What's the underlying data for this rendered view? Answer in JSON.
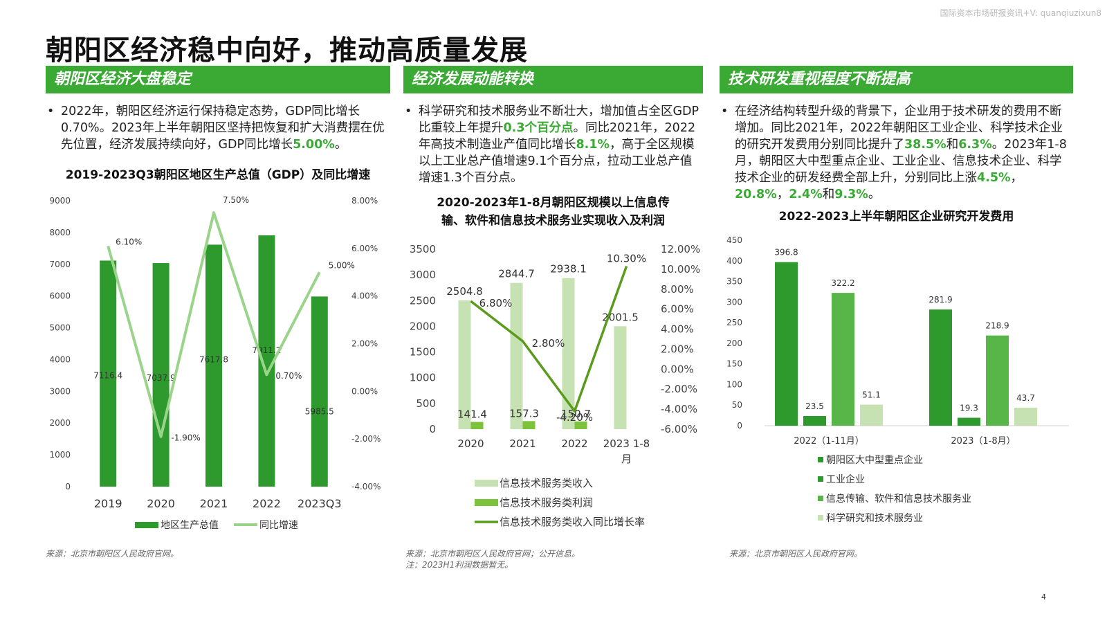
{
  "watermark": "国际资本市场研报资讯+V: quanqiuzixun8",
  "title": "朝阳区经济稳中向好，推动高质量发展",
  "page_number": "4",
  "colors": {
    "accent": "#3aaa35",
    "dark_green": "#2e9a2e",
    "mid_green": "#58b548",
    "light_green": "#a5d89a",
    "pale_green": "#c6e2b2",
    "line_green": "#9ad48b",
    "olive_green": "#5a9a1c",
    "lime": "#7cc23a"
  },
  "sections": [
    {
      "banner": "朝阳区经济大盘稳定",
      "bullet": [
        {
          "t": "2022年，朝阳区经济运行保持稳定态势，GDP同比增长0.70%。2023年上半年朝阳区坚持把恢复和扩大消费摆在优先位置，经济发展持续向好，GDP同比增长",
          "h": false
        },
        {
          "t": "5.00%",
          "h": true
        },
        {
          "t": "。",
          "h": false
        }
      ],
      "source": [
        "来源：北京市朝阳区人民政府官网。"
      ]
    },
    {
      "banner": "经济发展动能转换",
      "bullet": [
        {
          "t": "科学研究和技术服务业不断壮大，增加值占全区GDP比重较上年提升",
          "h": false
        },
        {
          "t": "0.3个百分点",
          "h": true
        },
        {
          "t": "。同比2021年，2022年高技术制造业产值同比增长",
          "h": false
        },
        {
          "t": "8.1%",
          "h": true
        },
        {
          "t": "，高于全区规模以上工业总产值增速9.1个百分点，拉动工业总产值增速1.3个百分点。",
          "h": false
        }
      ],
      "source": [
        "来源：北京市朝阳区人民政府官网；公开信息。",
        "注：2023H1利润数据暂无。"
      ]
    },
    {
      "banner": "技术研发重视程度不断提高",
      "bullet": [
        {
          "t": "在经济结构转型升级的背景下，企业用于技术研发的费用不断增加。同比2021年，2022年朝阳区工业企业、科学技术企业的研究开发费用分别同比提升了",
          "h": false
        },
        {
          "t": "38.5%",
          "h": true
        },
        {
          "t": "和",
          "h": false
        },
        {
          "t": "6.3%",
          "h": true
        },
        {
          "t": "。2023年1-8月，朝阳区大中型重点企业、工业企业、信息技术企业、科学技术企业的研发经费全部上升，分别同比上涨",
          "h": false
        },
        {
          "t": "4.5%",
          "h": true
        },
        {
          "t": "，",
          "h": false
        },
        {
          "t": "20.8%",
          "h": true
        },
        {
          "t": "，",
          "h": false
        },
        {
          "t": "2.4%",
          "h": true
        },
        {
          "t": "和",
          "h": false
        },
        {
          "t": "9.3%",
          "h": true
        },
        {
          "t": "。",
          "h": false
        }
      ],
      "source": [
        "来源：北京市朝阳区人民政府官网。"
      ]
    }
  ],
  "chart_data": [
    {
      "type": "bar+line",
      "title": "2019-2023Q3朝阳区地区生产总值（GDP）及同比增速",
      "categories": [
        "2019",
        "2020",
        "2021",
        "2022",
        "2023Q3"
      ],
      "series": [
        {
          "name": "地区生产总值",
          "kind": "bar",
          "axis": "left",
          "values": [
            7116.4,
            7037.9,
            7617.8,
            7911.2,
            5985.5
          ],
          "labels": [
            "7116.4",
            "7037.9",
            "7617.8",
            "7911.2",
            "5985.5"
          ]
        },
        {
          "name": "同比增速",
          "kind": "line",
          "axis": "right",
          "values": [
            6.1,
            -1.9,
            7.5,
            0.7,
            5.0
          ],
          "labels": [
            "6.10%",
            "-1.90%",
            "7.50%",
            "0.70%",
            "5.00%"
          ]
        }
      ],
      "left_axis": {
        "min": 0,
        "max": 9000,
        "step": 1000,
        "ticks": [
          "0",
          "1000",
          "2000",
          "3000",
          "4000",
          "5000",
          "6000",
          "7000",
          "8000",
          "9000"
        ]
      },
      "right_axis": {
        "min": -4,
        "max": 8,
        "step": 2,
        "ticks": [
          "-4.00%",
          "-2.00%",
          "0.00%",
          "2.00%",
          "4.00%",
          "6.00%",
          "8.00%"
        ]
      },
      "legend_position": "bottom"
    },
    {
      "type": "bar+line",
      "title": [
        "2020-2023年1-8月朝阳区规模以上信息传",
        "输、软件和信息技术服务业实现收入及利润"
      ],
      "categories": [
        "2020",
        "2021",
        "2022",
        "2023 1-8月"
      ],
      "category_lines": [
        [
          "2020"
        ],
        [
          "2021"
        ],
        [
          "2022"
        ],
        [
          "2023 1-8",
          "月"
        ]
      ],
      "series": [
        {
          "name": "信息技术服务类收入",
          "kind": "bar",
          "axis": "left",
          "values": [
            2504.8,
            2844.7,
            2938.1,
            2001.5
          ],
          "labels": [
            "2504.8",
            "2844.7",
            "2938.1",
            "2001.5"
          ]
        },
        {
          "name": "信息技术服务类利润",
          "kind": "bar",
          "axis": "left",
          "values": [
            141.4,
            157.3,
            150.7,
            null
          ],
          "labels": [
            "141.4",
            "157.3",
            "150.7",
            ""
          ]
        },
        {
          "name": "信息技术服务类收入同比增长率",
          "kind": "line",
          "axis": "right",
          "values": [
            6.8,
            2.8,
            -4.2,
            10.3
          ],
          "labels": [
            "6.80%",
            "2.80%",
            "-4.20%",
            "10.30%"
          ]
        }
      ],
      "left_axis": {
        "min": 0,
        "max": 3500,
        "step": 500,
        "ticks": [
          "0",
          "500",
          "1000",
          "1500",
          "2000",
          "2500",
          "3000",
          "3500"
        ]
      },
      "right_axis": {
        "min": -6,
        "max": 12,
        "step": 2,
        "ticks": [
          "-6.00%",
          "-4.00%",
          "-2.00%",
          "0.00%",
          "2.00%",
          "4.00%",
          "6.00%",
          "8.00%",
          "10.00%",
          "12.00%"
        ]
      },
      "legend_position": "bottom"
    },
    {
      "type": "bar",
      "title": "2022-2023上半年朝阳区企业研究开发费用",
      "categories": [
        "2022（1-11月）",
        "2023（1-8月）"
      ],
      "series": [
        {
          "name": "朝阳区大中型重点企业",
          "values": [
            396.8,
            281.9
          ],
          "labels": [
            "396.8",
            "281.9"
          ]
        },
        {
          "name": "工业企业",
          "values": [
            23.5,
            19.3
          ],
          "labels": [
            "23.5",
            "19.3"
          ]
        },
        {
          "name": "信息传输、软件和信息技术服务业",
          "values": [
            322.2,
            218.9
          ],
          "labels": [
            "322.2",
            "218.9"
          ]
        },
        {
          "name": "科学研究和技术服务业",
          "values": [
            51.1,
            43.7
          ],
          "labels": [
            "51.1",
            "43.7"
          ]
        }
      ],
      "y_axis": {
        "min": 0,
        "max": 450,
        "step": 50,
        "ticks": [
          "0",
          "50",
          "100",
          "150",
          "200",
          "250",
          "300",
          "350",
          "400",
          "450"
        ]
      },
      "legend_position": "bottom"
    }
  ]
}
